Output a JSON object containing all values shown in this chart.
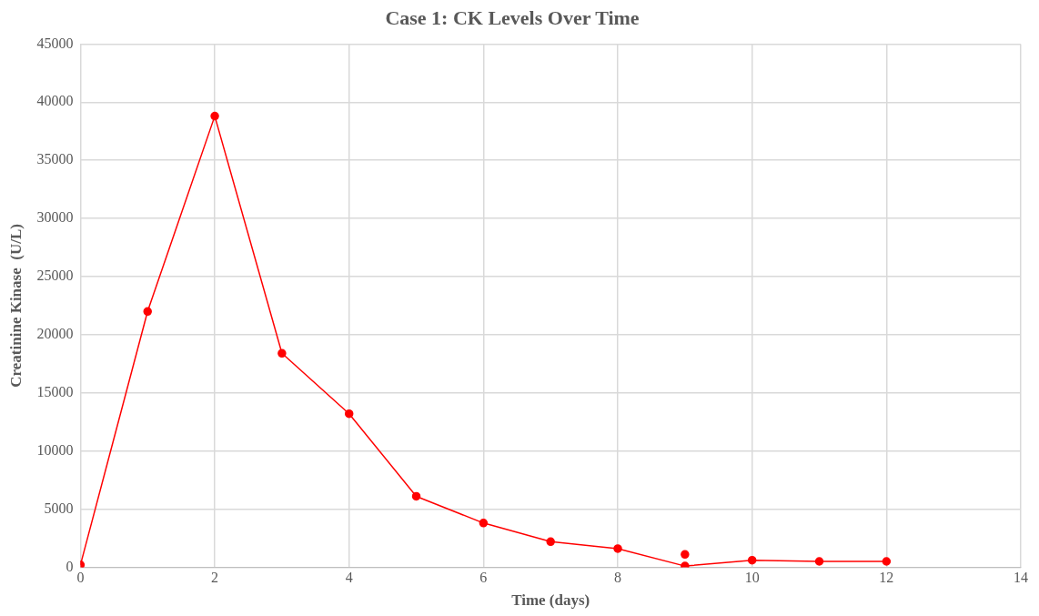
{
  "chart_data": {
    "type": "line",
    "title": "Case 1: CK Levels Over Time",
    "xlabel": "Time (days)",
    "ylabel": "Creatinine Kinase  (U/L)",
    "series": [
      {
        "color": "#ff0000",
        "x": [
          0,
          1,
          2,
          3,
          4,
          5,
          6,
          7,
          8,
          9,
          10,
          11,
          12
        ],
        "values": [
          200,
          22000,
          38800,
          18400,
          13200,
          6100,
          3800,
          2200,
          1600,
          100,
          600,
          500,
          500
        ]
      },
      {
        "type": "scatter",
        "color": "#ff0000",
        "x": [
          9
        ],
        "values": [
          1100
        ]
      }
    ],
    "xlim": [
      0,
      14
    ],
    "xticks": [
      0,
      2,
      4,
      6,
      8,
      10,
      12,
      14
    ],
    "ylim": [
      0,
      45000
    ],
    "yticks": [
      0,
      5000,
      10000,
      15000,
      20000,
      25000,
      30000,
      35000,
      40000,
      45000
    ],
    "grid": true,
    "legend": false,
    "marker": "circle",
    "line_style": "solid"
  }
}
